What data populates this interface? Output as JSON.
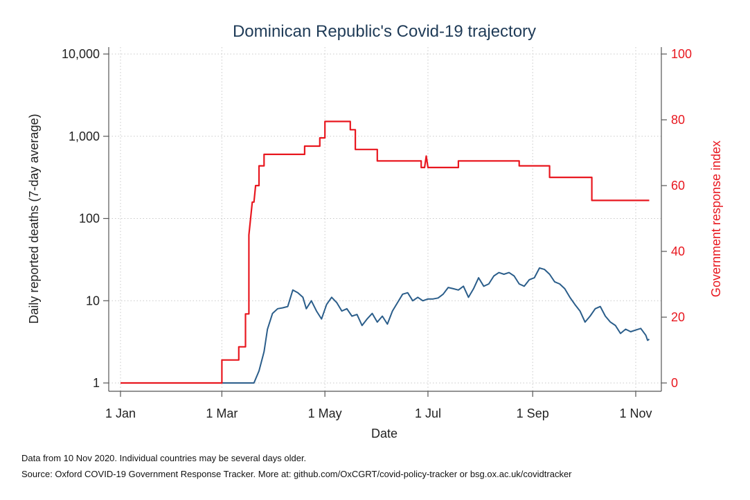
{
  "chart_data": {
    "type": "line",
    "title": "Dominican Republic's Covid-19 trajectory",
    "xlabel": "Date",
    "ylabel": "Daily reported deaths (7-day average)",
    "y2label": "Government response index",
    "x_range": [
      "2020-01-01",
      "2020-11-10"
    ],
    "x_ticks": [
      {
        "date": "2020-01-01",
        "label": "1 Jan"
      },
      {
        "date": "2020-03-01",
        "label": "1 Mar"
      },
      {
        "date": "2020-05-01",
        "label": "1 May"
      },
      {
        "date": "2020-07-01",
        "label": "1 Jul"
      },
      {
        "date": "2020-09-01",
        "label": "1 Sep"
      },
      {
        "date": "2020-11-01",
        "label": "1 Nov"
      }
    ],
    "y_scale": "log",
    "ylim": [
      1,
      10000
    ],
    "y_ticks": [
      {
        "value": 1,
        "label": "1"
      },
      {
        "value": 10,
        "label": "10"
      },
      {
        "value": 100,
        "label": "100"
      },
      {
        "value": 1000,
        "label": "1,000"
      },
      {
        "value": 10000,
        "label": "10,000"
      }
    ],
    "y2lim": [
      0,
      100
    ],
    "y2_ticks": [
      {
        "value": 0,
        "label": "0"
      },
      {
        "value": 20,
        "label": "20"
      },
      {
        "value": 40,
        "label": "40"
      },
      {
        "value": 60,
        "label": "60"
      },
      {
        "value": 80,
        "label": "80"
      },
      {
        "value": 100,
        "label": "100"
      }
    ],
    "grid": true,
    "series": [
      {
        "axis": "left",
        "color": "#2a5d8a",
        "points": [
          [
            "2020-01-01",
            1
          ],
          [
            "2020-03-01",
            1
          ],
          [
            "2020-03-20",
            1
          ],
          [
            "2020-03-23",
            1.4
          ],
          [
            "2020-03-26",
            2.4
          ],
          [
            "2020-03-28",
            4.5
          ],
          [
            "2020-03-31",
            7
          ],
          [
            "2020-04-03",
            8
          ],
          [
            "2020-04-06",
            8.2
          ],
          [
            "2020-04-09",
            8.5
          ],
          [
            "2020-04-12",
            13.5
          ],
          [
            "2020-04-15",
            12.5
          ],
          [
            "2020-04-18",
            11
          ],
          [
            "2020-04-20",
            8
          ],
          [
            "2020-04-23",
            10
          ],
          [
            "2020-04-26",
            7.5
          ],
          [
            "2020-04-29",
            6
          ],
          [
            "2020-05-02",
            9
          ],
          [
            "2020-05-05",
            11
          ],
          [
            "2020-05-08",
            9.5
          ],
          [
            "2020-05-11",
            7.5
          ],
          [
            "2020-05-14",
            8
          ],
          [
            "2020-05-17",
            6.5
          ],
          [
            "2020-05-20",
            6.8
          ],
          [
            "2020-05-23",
            5
          ],
          [
            "2020-05-26",
            6
          ],
          [
            "2020-05-29",
            7
          ],
          [
            "2020-06-01",
            5.5
          ],
          [
            "2020-06-04",
            6.5
          ],
          [
            "2020-06-07",
            5.2
          ],
          [
            "2020-06-10",
            7.5
          ],
          [
            "2020-06-13",
            9.5
          ],
          [
            "2020-06-16",
            12
          ],
          [
            "2020-06-19",
            12.5
          ],
          [
            "2020-06-22",
            10
          ],
          [
            "2020-06-25",
            11
          ],
          [
            "2020-06-28",
            10
          ],
          [
            "2020-07-01",
            10.5
          ],
          [
            "2020-07-04",
            10.5
          ],
          [
            "2020-07-07",
            10.8
          ],
          [
            "2020-07-10",
            12
          ],
          [
            "2020-07-13",
            14.5
          ],
          [
            "2020-07-16",
            14
          ],
          [
            "2020-07-19",
            13.5
          ],
          [
            "2020-07-22",
            15
          ],
          [
            "2020-07-25",
            11
          ],
          [
            "2020-07-28",
            14
          ],
          [
            "2020-07-31",
            19
          ],
          [
            "2020-08-03",
            15
          ],
          [
            "2020-08-06",
            16
          ],
          [
            "2020-08-09",
            20
          ],
          [
            "2020-08-12",
            22
          ],
          [
            "2020-08-15",
            21
          ],
          [
            "2020-08-18",
            22
          ],
          [
            "2020-08-21",
            20
          ],
          [
            "2020-08-24",
            16
          ],
          [
            "2020-08-27",
            15
          ],
          [
            "2020-08-30",
            18
          ],
          [
            "2020-09-02",
            19
          ],
          [
            "2020-09-05",
            25
          ],
          [
            "2020-09-08",
            24
          ],
          [
            "2020-09-11",
            21
          ],
          [
            "2020-09-14",
            17
          ],
          [
            "2020-09-17",
            16
          ],
          [
            "2020-09-20",
            14
          ],
          [
            "2020-09-23",
            11
          ],
          [
            "2020-09-26",
            9
          ],
          [
            "2020-09-29",
            7.5
          ],
          [
            "2020-10-02",
            5.5
          ],
          [
            "2020-10-05",
            6.5
          ],
          [
            "2020-10-08",
            8
          ],
          [
            "2020-10-11",
            8.5
          ],
          [
            "2020-10-14",
            6.5
          ],
          [
            "2020-10-17",
            5.5
          ],
          [
            "2020-10-20",
            5
          ],
          [
            "2020-10-23",
            4
          ],
          [
            "2020-10-26",
            4.5
          ],
          [
            "2020-10-29",
            4.2
          ],
          [
            "2020-11-01",
            4.4
          ],
          [
            "2020-11-04",
            4.6
          ],
          [
            "2020-11-07",
            3.8
          ],
          [
            "2020-11-08",
            3.3
          ],
          [
            "2020-11-09",
            3.4
          ]
        ]
      },
      {
        "axis": "right",
        "color": "#e8171f",
        "points": [
          [
            "2020-01-01",
            0
          ],
          [
            "2020-03-01",
            0
          ],
          [
            "2020-03-01",
            7
          ],
          [
            "2020-03-11",
            7
          ],
          [
            "2020-03-11",
            11
          ],
          [
            "2020-03-15",
            11
          ],
          [
            "2020-03-15",
            21
          ],
          [
            "2020-03-17",
            21
          ],
          [
            "2020-03-17",
            45
          ],
          [
            "2020-03-19",
            55
          ],
          [
            "2020-03-20",
            55
          ],
          [
            "2020-03-21",
            60
          ],
          [
            "2020-03-23",
            60
          ],
          [
            "2020-03-23",
            66
          ],
          [
            "2020-03-26",
            66
          ],
          [
            "2020-03-26",
            69.5
          ],
          [
            "2020-04-19",
            69.5
          ],
          [
            "2020-04-19",
            72
          ],
          [
            "2020-04-28",
            72
          ],
          [
            "2020-04-28",
            74.5
          ],
          [
            "2020-05-01",
            74.5
          ],
          [
            "2020-05-01",
            79.5
          ],
          [
            "2020-05-16",
            79.5
          ],
          [
            "2020-05-16",
            77
          ],
          [
            "2020-05-19",
            77
          ],
          [
            "2020-05-19",
            71
          ],
          [
            "2020-06-01",
            71
          ],
          [
            "2020-06-01",
            67.5
          ],
          [
            "2020-06-27",
            67.5
          ],
          [
            "2020-06-27",
            65.5
          ],
          [
            "2020-06-29",
            65.5
          ],
          [
            "2020-06-30",
            69
          ],
          [
            "2020-07-01",
            65.5
          ],
          [
            "2020-07-19",
            65.5
          ],
          [
            "2020-07-19",
            67.5
          ],
          [
            "2020-08-24",
            67.5
          ],
          [
            "2020-08-24",
            66
          ],
          [
            "2020-09-11",
            66
          ],
          [
            "2020-09-11",
            62.5
          ],
          [
            "2020-10-06",
            62.5
          ],
          [
            "2020-10-06",
            55.5
          ],
          [
            "2020-11-09",
            55.5
          ]
        ]
      }
    ]
  },
  "footnotes": {
    "line1": "Data from 10 Nov 2020. Individual countries may be several days older.",
    "line2": "Source: Oxford COVID-19 Government Response Tracker. More at: github.com/OxCGRT/covid-policy-tracker or bsg.ox.ac.uk/covidtracker"
  }
}
